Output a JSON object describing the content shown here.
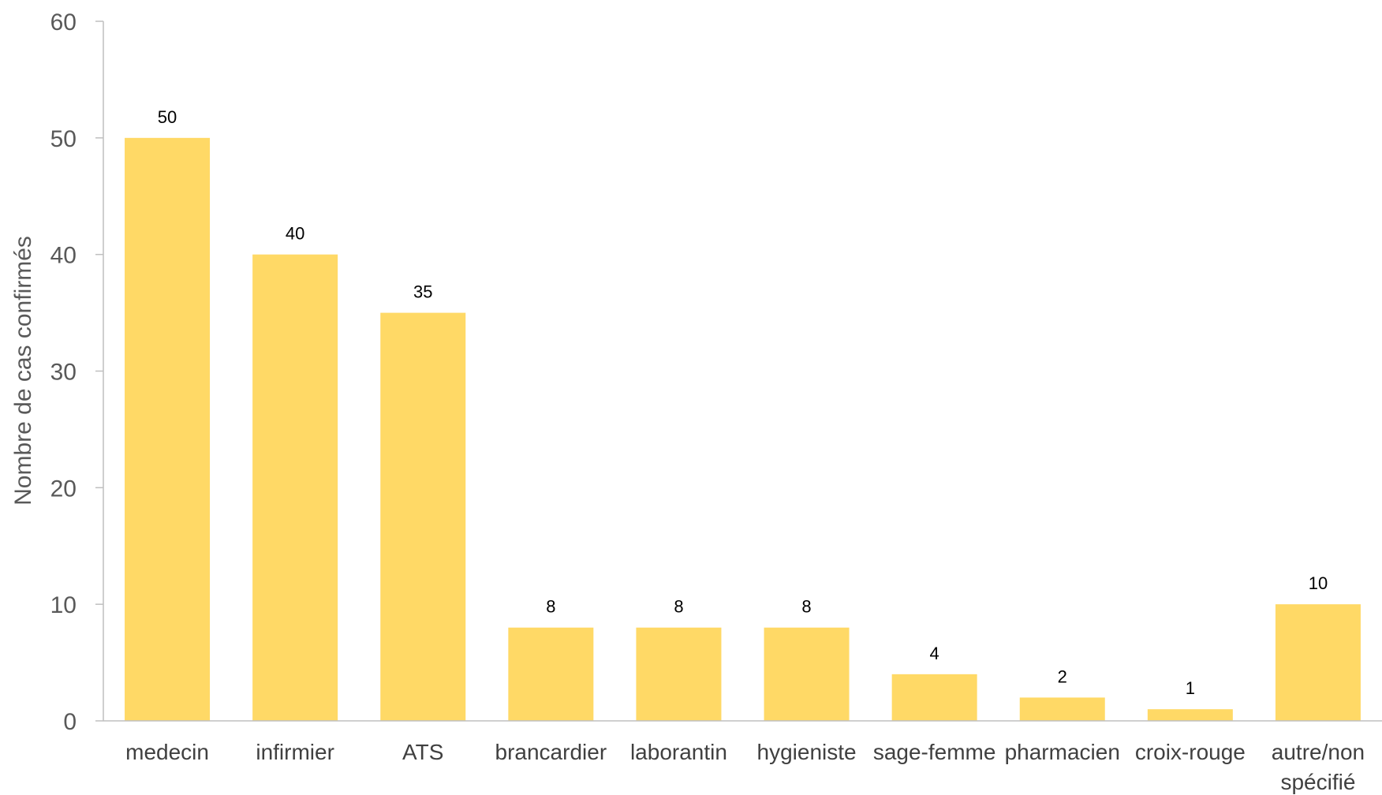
{
  "chart_data": {
    "type": "bar",
    "categories": [
      [
        "medecin"
      ],
      [
        "infirmier"
      ],
      [
        "ATS"
      ],
      [
        "brancardier"
      ],
      [
        "laborantin"
      ],
      [
        "hygieniste"
      ],
      [
        "sage-femme"
      ],
      [
        "pharmacien"
      ],
      [
        "croix-rouge"
      ],
      [
        "autre/non",
        "spécifié"
      ]
    ],
    "values": [
      50,
      40,
      35,
      8,
      8,
      8,
      4,
      2,
      1,
      10
    ],
    "ylabel": "Nombre de cas confirmés",
    "ylim": [
      0,
      60
    ],
    "yticks": [
      0,
      10,
      20,
      30,
      40,
      50,
      60
    ],
    "grid": false,
    "data_labels": true,
    "colors": {
      "bar": "#FFD966",
      "axis": "#BFBFBF"
    }
  }
}
